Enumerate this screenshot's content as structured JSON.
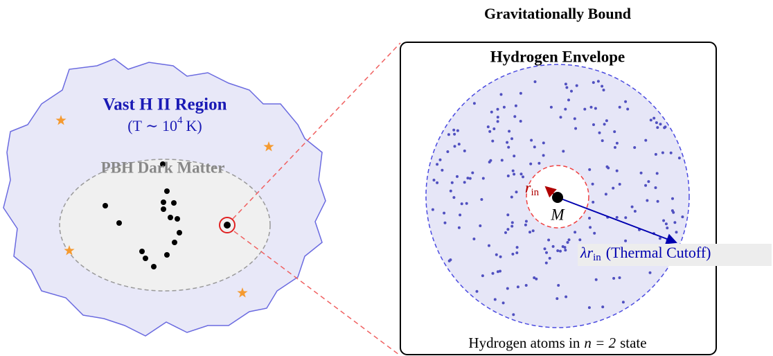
{
  "header": {
    "title": "Gravitationally Bound"
  },
  "left_panel": {
    "region_title": "Vast H II Region",
    "temperature": {
      "base": "(T ∼ 10",
      "exponent": "4",
      "unit": "K)"
    },
    "cluster_label": "PBH Dark Matter"
  },
  "right_panel": {
    "title": "Hydrogen Envelope",
    "inner_radius": {
      "symbol": "r",
      "subscript": "in"
    },
    "mass": "M",
    "outer_radius": {
      "symbol": "λr",
      "subscript": "in",
      "note": "(Thermal Cutoff)"
    },
    "caption": {
      "before": "Hydrogen atoms in",
      "formula": "n = 2",
      "after": "state"
    }
  }
}
